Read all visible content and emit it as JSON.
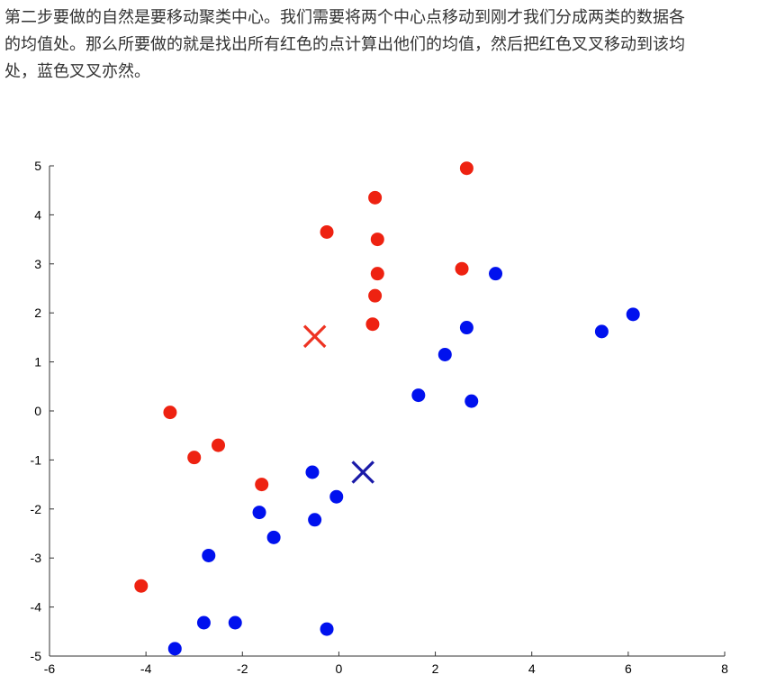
{
  "article": {
    "lines": [
      "第二步要做的自然是要移动聚类中心。我们需要将两个中心点移动到刚才我们分成两类的数据各",
      "的均值处。那么所要做的就是找出所有红色的点计算出他们的均值，然后把红色叉叉移动到该均",
      "处，蓝色叉叉亦然。"
    ]
  },
  "chart_data": {
    "type": "scatter",
    "title": "",
    "xlabel": "",
    "ylabel": "",
    "xlim": [
      -6,
      8
    ],
    "ylim": [
      -5,
      5
    ],
    "xticks": [
      "-6",
      "-4",
      "-2",
      "0",
      "2",
      "4",
      "6",
      "8"
    ],
    "yticks": [
      "5",
      "4",
      "3",
      "2",
      "1",
      "0",
      "-1",
      "-2",
      "-3",
      "-4",
      "-5"
    ],
    "grid": false,
    "colors": {
      "red": "#ee2211",
      "blue": "#0011ee",
      "red_center": "#ee3322",
      "blue_center": "#1a1aa8"
    },
    "series": [
      {
        "color": "red",
        "marker": "circle",
        "points": [
          [
            2.65,
            4.95
          ],
          [
            0.75,
            4.35
          ],
          [
            -0.25,
            3.65
          ],
          [
            0.8,
            3.5
          ],
          [
            2.55,
            2.9
          ],
          [
            0.8,
            2.8
          ],
          [
            0.75,
            2.35
          ],
          [
            0.7,
            1.77
          ],
          [
            -3.5,
            -0.03
          ],
          [
            -2.5,
            -0.7
          ],
          [
            -3.0,
            -0.95
          ],
          [
            -1.6,
            -1.5
          ],
          [
            -4.1,
            -3.57
          ]
        ]
      },
      {
        "color": "blue",
        "marker": "circle",
        "points": [
          [
            3.25,
            2.8
          ],
          [
            6.1,
            1.97
          ],
          [
            5.45,
            1.62
          ],
          [
            2.65,
            1.7
          ],
          [
            2.2,
            1.15
          ],
          [
            1.65,
            0.32
          ],
          [
            2.75,
            0.2
          ],
          [
            -0.55,
            -1.25
          ],
          [
            -0.05,
            -1.75
          ],
          [
            -1.65,
            -2.07
          ],
          [
            -0.5,
            -2.22
          ],
          [
            -1.35,
            -2.58
          ],
          [
            -2.7,
            -2.95
          ],
          [
            -2.8,
            -4.32
          ],
          [
            -2.15,
            -4.32
          ],
          [
            -0.25,
            -4.45
          ],
          [
            -3.4,
            -4.85
          ]
        ]
      },
      {
        "color": "red_center",
        "marker": "x",
        "points": [
          [
            -0.5,
            1.52
          ]
        ]
      },
      {
        "color": "blue_center",
        "marker": "x",
        "points": [
          [
            0.5,
            -1.25
          ]
        ]
      }
    ]
  }
}
